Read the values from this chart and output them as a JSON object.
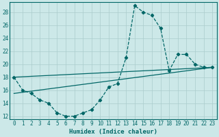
{
  "xlabel": "Humidex (Indice chaleur)",
  "background_color": "#cce8e8",
  "line_color": "#006666",
  "grid_color": "#aacccc",
  "xlim": [
    -0.5,
    23.5
  ],
  "ylim": [
    11.5,
    29.5
  ],
  "yticks": [
    12,
    14,
    16,
    18,
    20,
    22,
    24,
    26,
    28
  ],
  "xticks": [
    0,
    1,
    2,
    3,
    4,
    5,
    6,
    7,
    8,
    9,
    10,
    11,
    12,
    13,
    14,
    15,
    16,
    17,
    18,
    19,
    20,
    21,
    22,
    23
  ],
  "curve_x": [
    0,
    1,
    2,
    3,
    4,
    5,
    6,
    7,
    8,
    9,
    10,
    11,
    12,
    13,
    14,
    15,
    16,
    17,
    18,
    19,
    20,
    21,
    22,
    23
  ],
  "curve_y": [
    18,
    16,
    15.5,
    14.5,
    14,
    12.5,
    12,
    12,
    12.5,
    13,
    14.5,
    16.5,
    17,
    21,
    29,
    28,
    27.5,
    25.5,
    19,
    21.5,
    21.5,
    20,
    19.5,
    19.5
  ],
  "line1_x": [
    0,
    23
  ],
  "line1_y": [
    15.5,
    19.5
  ],
  "line2_x": [
    0,
    23
  ],
  "line2_y": [
    18,
    19.5
  ]
}
